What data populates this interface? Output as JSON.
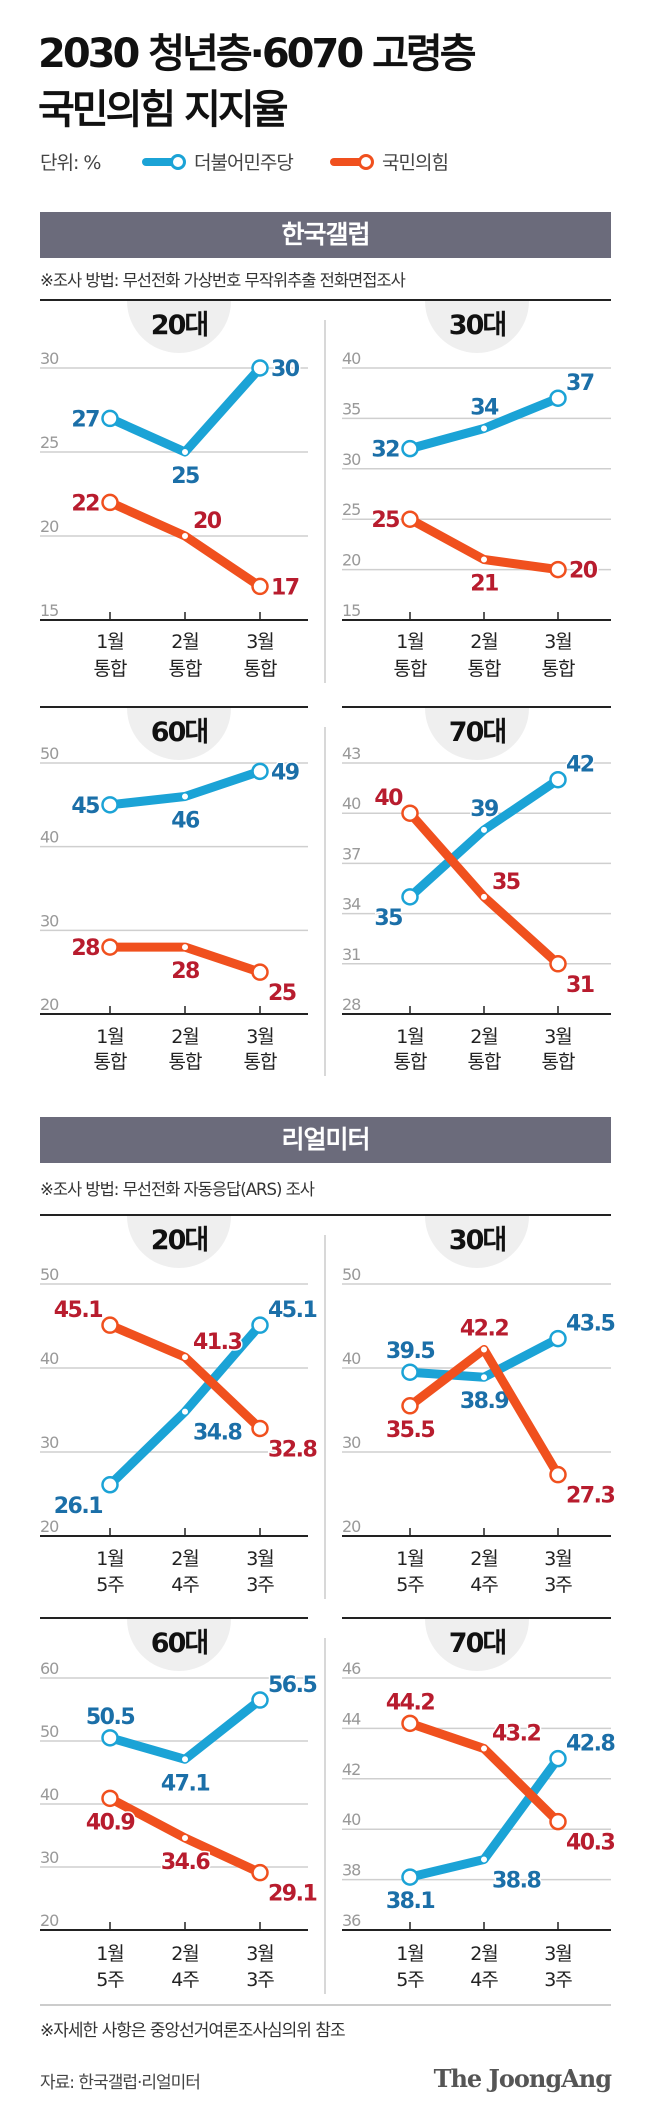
{
  "title": [
    "2030 청년층·6070 고령층",
    "국민의힘 지지율"
  ],
  "unit": "단위: %",
  "legend": [
    {
      "name": "더불어민주당",
      "color": "#1ba3d6",
      "label_color": "#1b6fa8"
    },
    {
      "name": "국민의힘",
      "color": "#f0501e",
      "label_color": "#b81c2e"
    }
  ],
  "sections": [
    {
      "banner": "한국갤럽",
      "method": "※조사 방법: 무선전화 가상번호 무작위추출 전화면접조사"
    },
    {
      "banner": "리얼미터",
      "method": "※조사 방법: 무선전화 자동응답(ARS) 조사"
    }
  ],
  "footnote": "※자세한 사항은 중앙선거여론조사심의위 참조",
  "source": "자료: 한국갤럽·리얼미터",
  "logo": "The JoongAng",
  "chart_data": [
    {
      "type": "line",
      "section": "한국갤럽",
      "title": "20대",
      "categories": [
        [
          "1월",
          "통합"
        ],
        [
          "2월",
          "통합"
        ],
        [
          "3월",
          "통합"
        ]
      ],
      "ylim": [
        15,
        30
      ],
      "yticks": [
        15,
        20,
        25,
        30
      ],
      "grid": true,
      "series": [
        {
          "name": "더불어민주당",
          "values": [
            27,
            25,
            30
          ]
        },
        {
          "name": "국민의힘",
          "values": [
            22,
            20,
            17
          ]
        }
      ]
    },
    {
      "type": "line",
      "section": "한국갤럽",
      "title": "30대",
      "categories": [
        [
          "1월",
          "통합"
        ],
        [
          "2월",
          "통합"
        ],
        [
          "3월",
          "통합"
        ]
      ],
      "ylim": [
        15,
        40
      ],
      "yticks": [
        15,
        20,
        25,
        30,
        35,
        40
      ],
      "grid": true,
      "series": [
        {
          "name": "더불어민주당",
          "values": [
            32,
            34,
            37
          ]
        },
        {
          "name": "국민의힘",
          "values": [
            25,
            21,
            20
          ]
        }
      ]
    },
    {
      "type": "line",
      "section": "한국갤럽",
      "title": "60대",
      "categories": [
        [
          "1월",
          "통합"
        ],
        [
          "2월",
          "통합"
        ],
        [
          "3월",
          "통합"
        ]
      ],
      "ylim": [
        20,
        50
      ],
      "yticks": [
        20,
        30,
        40,
        50
      ],
      "grid": true,
      "series": [
        {
          "name": "더불어민주당",
          "values": [
            45,
            46,
            49
          ]
        },
        {
          "name": "국민의힘",
          "values": [
            28,
            28,
            25
          ]
        }
      ]
    },
    {
      "type": "line",
      "section": "한국갤럽",
      "title": "70대",
      "categories": [
        [
          "1월",
          "통합"
        ],
        [
          "2월",
          "통합"
        ],
        [
          "3월",
          "통합"
        ]
      ],
      "ylim": [
        28,
        43
      ],
      "yticks": [
        28,
        31,
        34,
        37,
        40,
        43
      ],
      "grid": true,
      "series": [
        {
          "name": "더불어민주당",
          "values": [
            35,
            39,
            42
          ]
        },
        {
          "name": "국민의힘",
          "values": [
            40,
            35,
            31
          ]
        }
      ]
    },
    {
      "type": "line",
      "section": "리얼미터",
      "title": "20대",
      "categories": [
        [
          "1월",
          "5주"
        ],
        [
          "2월",
          "4주"
        ],
        [
          "3월",
          "3주"
        ]
      ],
      "ylim": [
        20,
        50
      ],
      "yticks": [
        20,
        30,
        40,
        50
      ],
      "grid": true,
      "series": [
        {
          "name": "더불어민주당",
          "values": [
            26.1,
            34.8,
            45.1
          ]
        },
        {
          "name": "국민의힘",
          "values": [
            45.1,
            41.3,
            32.8
          ]
        }
      ]
    },
    {
      "type": "line",
      "section": "리얼미터",
      "title": "30대",
      "categories": [
        [
          "1월",
          "5주"
        ],
        [
          "2월",
          "4주"
        ],
        [
          "3월",
          "3주"
        ]
      ],
      "ylim": [
        20,
        50
      ],
      "yticks": [
        20,
        30,
        40,
        50
      ],
      "grid": true,
      "series": [
        {
          "name": "더불어민주당",
          "values": [
            39.5,
            38.9,
            43.5
          ]
        },
        {
          "name": "국민의힘",
          "values": [
            35.5,
            42.2,
            27.3
          ]
        }
      ]
    },
    {
      "type": "line",
      "section": "리얼미터",
      "title": "60대",
      "categories": [
        [
          "1월",
          "5주"
        ],
        [
          "2월",
          "4주"
        ],
        [
          "3월",
          "3주"
        ]
      ],
      "ylim": [
        20,
        60
      ],
      "yticks": [
        20,
        30,
        40,
        50,
        60
      ],
      "grid": true,
      "series": [
        {
          "name": "더불어민주당",
          "values": [
            50.5,
            47.1,
            56.5
          ]
        },
        {
          "name": "국민의힘",
          "values": [
            40.9,
            34.6,
            29.1
          ]
        }
      ]
    },
    {
      "type": "line",
      "section": "리얼미터",
      "title": "70대",
      "categories": [
        [
          "1월",
          "5주"
        ],
        [
          "2월",
          "4주"
        ],
        [
          "3월",
          "3주"
        ]
      ],
      "ylim": [
        36,
        46
      ],
      "yticks": [
        36,
        38,
        40,
        42,
        44,
        46
      ],
      "grid": true,
      "series": [
        {
          "name": "더불어민주당",
          "values": [
            38.1,
            38.8,
            42.8
          ]
        },
        {
          "name": "국민의힘",
          "values": [
            44.2,
            43.2,
            40.3
          ]
        }
      ]
    }
  ]
}
